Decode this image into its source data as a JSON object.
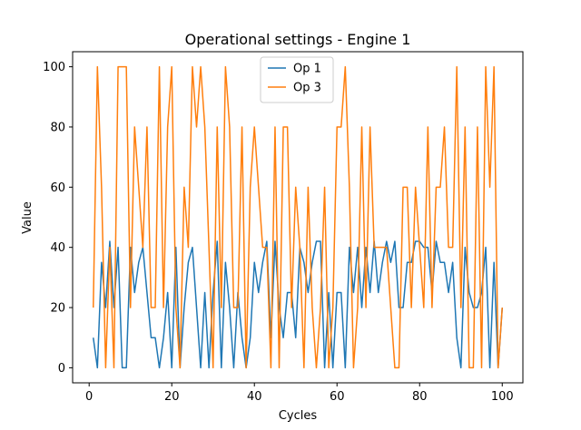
{
  "chart_data": {
    "type": "line",
    "title": "Operational settings - Engine 1",
    "xlabel": "Cycles",
    "ylabel": "Value",
    "xlim": [
      -4,
      105
    ],
    "ylim": [
      -5,
      105
    ],
    "xticks": [
      0,
      20,
      40,
      60,
      80,
      100
    ],
    "yticks": [
      0,
      20,
      40,
      60,
      80,
      100
    ],
    "legend_position": "top-center",
    "grid": false,
    "x": [
      1,
      2,
      3,
      4,
      5,
      6,
      7,
      8,
      9,
      10,
      11,
      12,
      13,
      14,
      15,
      16,
      17,
      18,
      19,
      20,
      21,
      22,
      23,
      24,
      25,
      26,
      27,
      28,
      29,
      30,
      31,
      32,
      33,
      34,
      35,
      36,
      37,
      38,
      39,
      40,
      41,
      42,
      43,
      44,
      45,
      46,
      47,
      48,
      49,
      50,
      51,
      52,
      53,
      54,
      55,
      56,
      57,
      58,
      59,
      60,
      61,
      62,
      63,
      64,
      65,
      66,
      67,
      68,
      69,
      70,
      71,
      72,
      73,
      74,
      75,
      76,
      77,
      78,
      79,
      80,
      81,
      82,
      83,
      84,
      85,
      86,
      87,
      88,
      89,
      90,
      91,
      92,
      93,
      94,
      95,
      96,
      97,
      98,
      99,
      100
    ],
    "series": [
      {
        "name": "Op 1",
        "color": "#1f77b4",
        "values": [
          10,
          0,
          35,
          20,
          42,
          20,
          40,
          0,
          0,
          40,
          25,
          35,
          40,
          25,
          10,
          10,
          0,
          10,
          25,
          0,
          40,
          0,
          20,
          35,
          40,
          20,
          0,
          25,
          0,
          25,
          42,
          0,
          35,
          20,
          0,
          25,
          10,
          0,
          10,
          35,
          25,
          35,
          42,
          10,
          42,
          20,
          10,
          25,
          25,
          10,
          40,
          35,
          25,
          35,
          42,
          42,
          0,
          25,
          0,
          25,
          25,
          0,
          40,
          25,
          40,
          20,
          40,
          25,
          42,
          25,
          35,
          42,
          35,
          42,
          20,
          20,
          35,
          35,
          42,
          42,
          40,
          40,
          25,
          42,
          35,
          35,
          25,
          35,
          10,
          0,
          40,
          25,
          20,
          20,
          25,
          40,
          0,
          35,
          0,
          20
        ]
      },
      {
        "name": "Op 3",
        "color": "#ff7f0e",
        "values": [
          20,
          100,
          60,
          0,
          40,
          0,
          100,
          100,
          100,
          20,
          80,
          60,
          40,
          80,
          20,
          20,
          100,
          20,
          80,
          100,
          20,
          0,
          60,
          40,
          100,
          80,
          100,
          80,
          40,
          0,
          80,
          20,
          100,
          80,
          20,
          20,
          80,
          0,
          60,
          80,
          60,
          40,
          40,
          0,
          80,
          0,
          80,
          80,
          20,
          60,
          40,
          0,
          60,
          20,
          0,
          20,
          60,
          0,
          20,
          80,
          80,
          100,
          60,
          0,
          20,
          80,
          20,
          80,
          40,
          40,
          40,
          40,
          20,
          0,
          0,
          60,
          60,
          20,
          60,
          40,
          20,
          80,
          20,
          60,
          60,
          80,
          40,
          40,
          100,
          20,
          80,
          0,
          0,
          80,
          0,
          100,
          60,
          100,
          0,
          20
        ]
      }
    ]
  }
}
